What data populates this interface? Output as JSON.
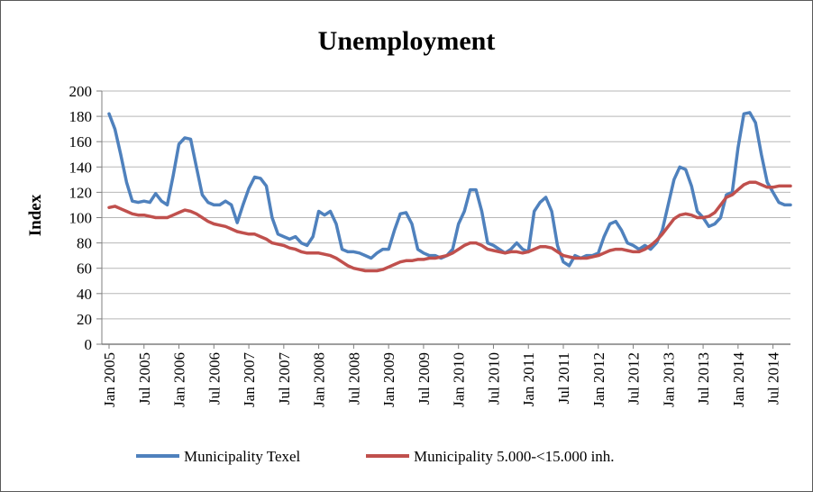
{
  "chart_data": {
    "type": "line",
    "title": "Unemployment",
    "ylabel": "Index",
    "ylim": [
      0,
      200
    ],
    "ytick_step": 20,
    "y_tick_labels": [
      "0",
      "20",
      "40",
      "60",
      "80",
      "100",
      "120",
      "140",
      "160",
      "180",
      "200"
    ],
    "x_tick_every": 6,
    "x_tick_labels": [
      "Jan 2005",
      "Jul 2005",
      "Jan 2006",
      "Jul 2006",
      "Jan 2007",
      "Jul 2007",
      "Jan 2008",
      "Jul 2008",
      "Jan 2009",
      "Jul 2009",
      "Jan 2010",
      "Jul 2010",
      "Jan 2011",
      "Jul 2011",
      "Jan 2012",
      "Jul 2012",
      "Jan 2013",
      "Jul 2013",
      "Jan 2014",
      "Jul 2014"
    ],
    "grid": true,
    "legend_position": "bottom",
    "colors": {
      "texel_blue": "#4F81BD",
      "municipality_red": "#C0504D",
      "gridline": "#b7b7b7",
      "axis": "#7f7f7f"
    },
    "series": [
      {
        "name": "Municipality Texel",
        "color": "#4F81BD",
        "values": [
          182,
          170,
          150,
          128,
          113,
          112,
          113,
          112,
          119,
          113,
          110,
          133,
          158,
          163,
          162,
          140,
          118,
          112,
          110,
          110,
          113,
          110,
          96,
          110,
          123,
          132,
          131,
          125,
          100,
          87,
          85,
          83,
          85,
          80,
          78,
          85,
          105,
          102,
          105,
          95,
          75,
          73,
          73,
          72,
          70,
          68,
          72,
          75,
          75,
          90,
          103,
          104,
          95,
          75,
          72,
          70,
          70,
          68,
          70,
          75,
          95,
          105,
          122,
          122,
          105,
          80,
          78,
          75,
          72,
          75,
          80,
          75,
          73,
          105,
          112,
          116,
          105,
          78,
          65,
          62,
          70,
          68,
          70,
          70,
          72,
          85,
          95,
          97,
          90,
          80,
          78,
          75,
          78,
          75,
          80,
          90,
          110,
          130,
          140,
          138,
          125,
          105,
          100,
          93,
          95,
          100,
          118,
          120,
          155,
          182,
          183,
          175,
          150,
          128,
          120,
          112,
          110,
          110
        ]
      },
      {
        "name": "Municipality 5.000-<15.000 inh.",
        "color": "#C0504D",
        "values": [
          108,
          109,
          107,
          105,
          103,
          102,
          102,
          101,
          100,
          100,
          100,
          102,
          104,
          106,
          105,
          103,
          100,
          97,
          95,
          94,
          93,
          91,
          89,
          88,
          87,
          87,
          85,
          83,
          80,
          79,
          78,
          76,
          75,
          73,
          72,
          72,
          72,
          71,
          70,
          68,
          65,
          62,
          60,
          59,
          58,
          58,
          58,
          59,
          61,
          63,
          65,
          66,
          66,
          67,
          67,
          68,
          68,
          69,
          70,
          72,
          75,
          78,
          80,
          80,
          78,
          75,
          74,
          73,
          72,
          73,
          73,
          72,
          73,
          75,
          77,
          77,
          76,
          73,
          70,
          69,
          68,
          68,
          68,
          69,
          70,
          72,
          74,
          75,
          75,
          74,
          73,
          73,
          75,
          78,
          82,
          87,
          93,
          99,
          102,
          103,
          102,
          100,
          100,
          101,
          104,
          110,
          116,
          118,
          122,
          126,
          128,
          128,
          126,
          124,
          124,
          125,
          125,
          125
        ]
      }
    ]
  }
}
